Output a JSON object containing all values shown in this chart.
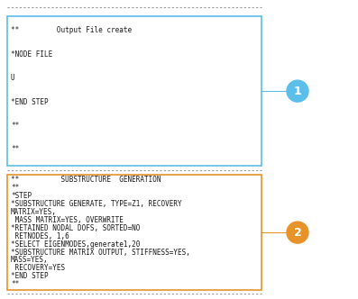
{
  "box1_lines": [
    "**         Output File create",
    "*NODE FILE",
    "U",
    "*END STEP",
    "**",
    "**"
  ],
  "box2_lines": [
    "**          SUBSTRUCTURE  GENERATION",
    "**",
    "*STEP",
    "*SUBSTRUCTURE GENERATE, TYPE=Z1, RECOVERY",
    "MATRIX=YES,",
    " MASS MATRIX=YES, OVERWRITE",
    "*RETAINED NODAL DOFS, SORTED=NO",
    " RETNODES, 1,6",
    "*SELECT EIGENMODES,generate1,20",
    "*SUBSTRUCTURE MATRIX OUTPUT, STIFFNESS=YES,",
    "MASS=YES,",
    " RECOVERY=YES",
    "*END STEP",
    "**"
  ],
  "box1_color": "#5bbfea",
  "box2_color": "#e8922a",
  "circle1_color": "#5bbfea",
  "circle2_color": "#e8922a",
  "label1": "1",
  "label2": "2",
  "bg_color": "#ffffff",
  "text_color": "#1a1a1a",
  "dashed_line_color": "#999999",
  "font_size": 5.5,
  "fig_width": 3.97,
  "fig_height": 3.32,
  "dpi": 100
}
